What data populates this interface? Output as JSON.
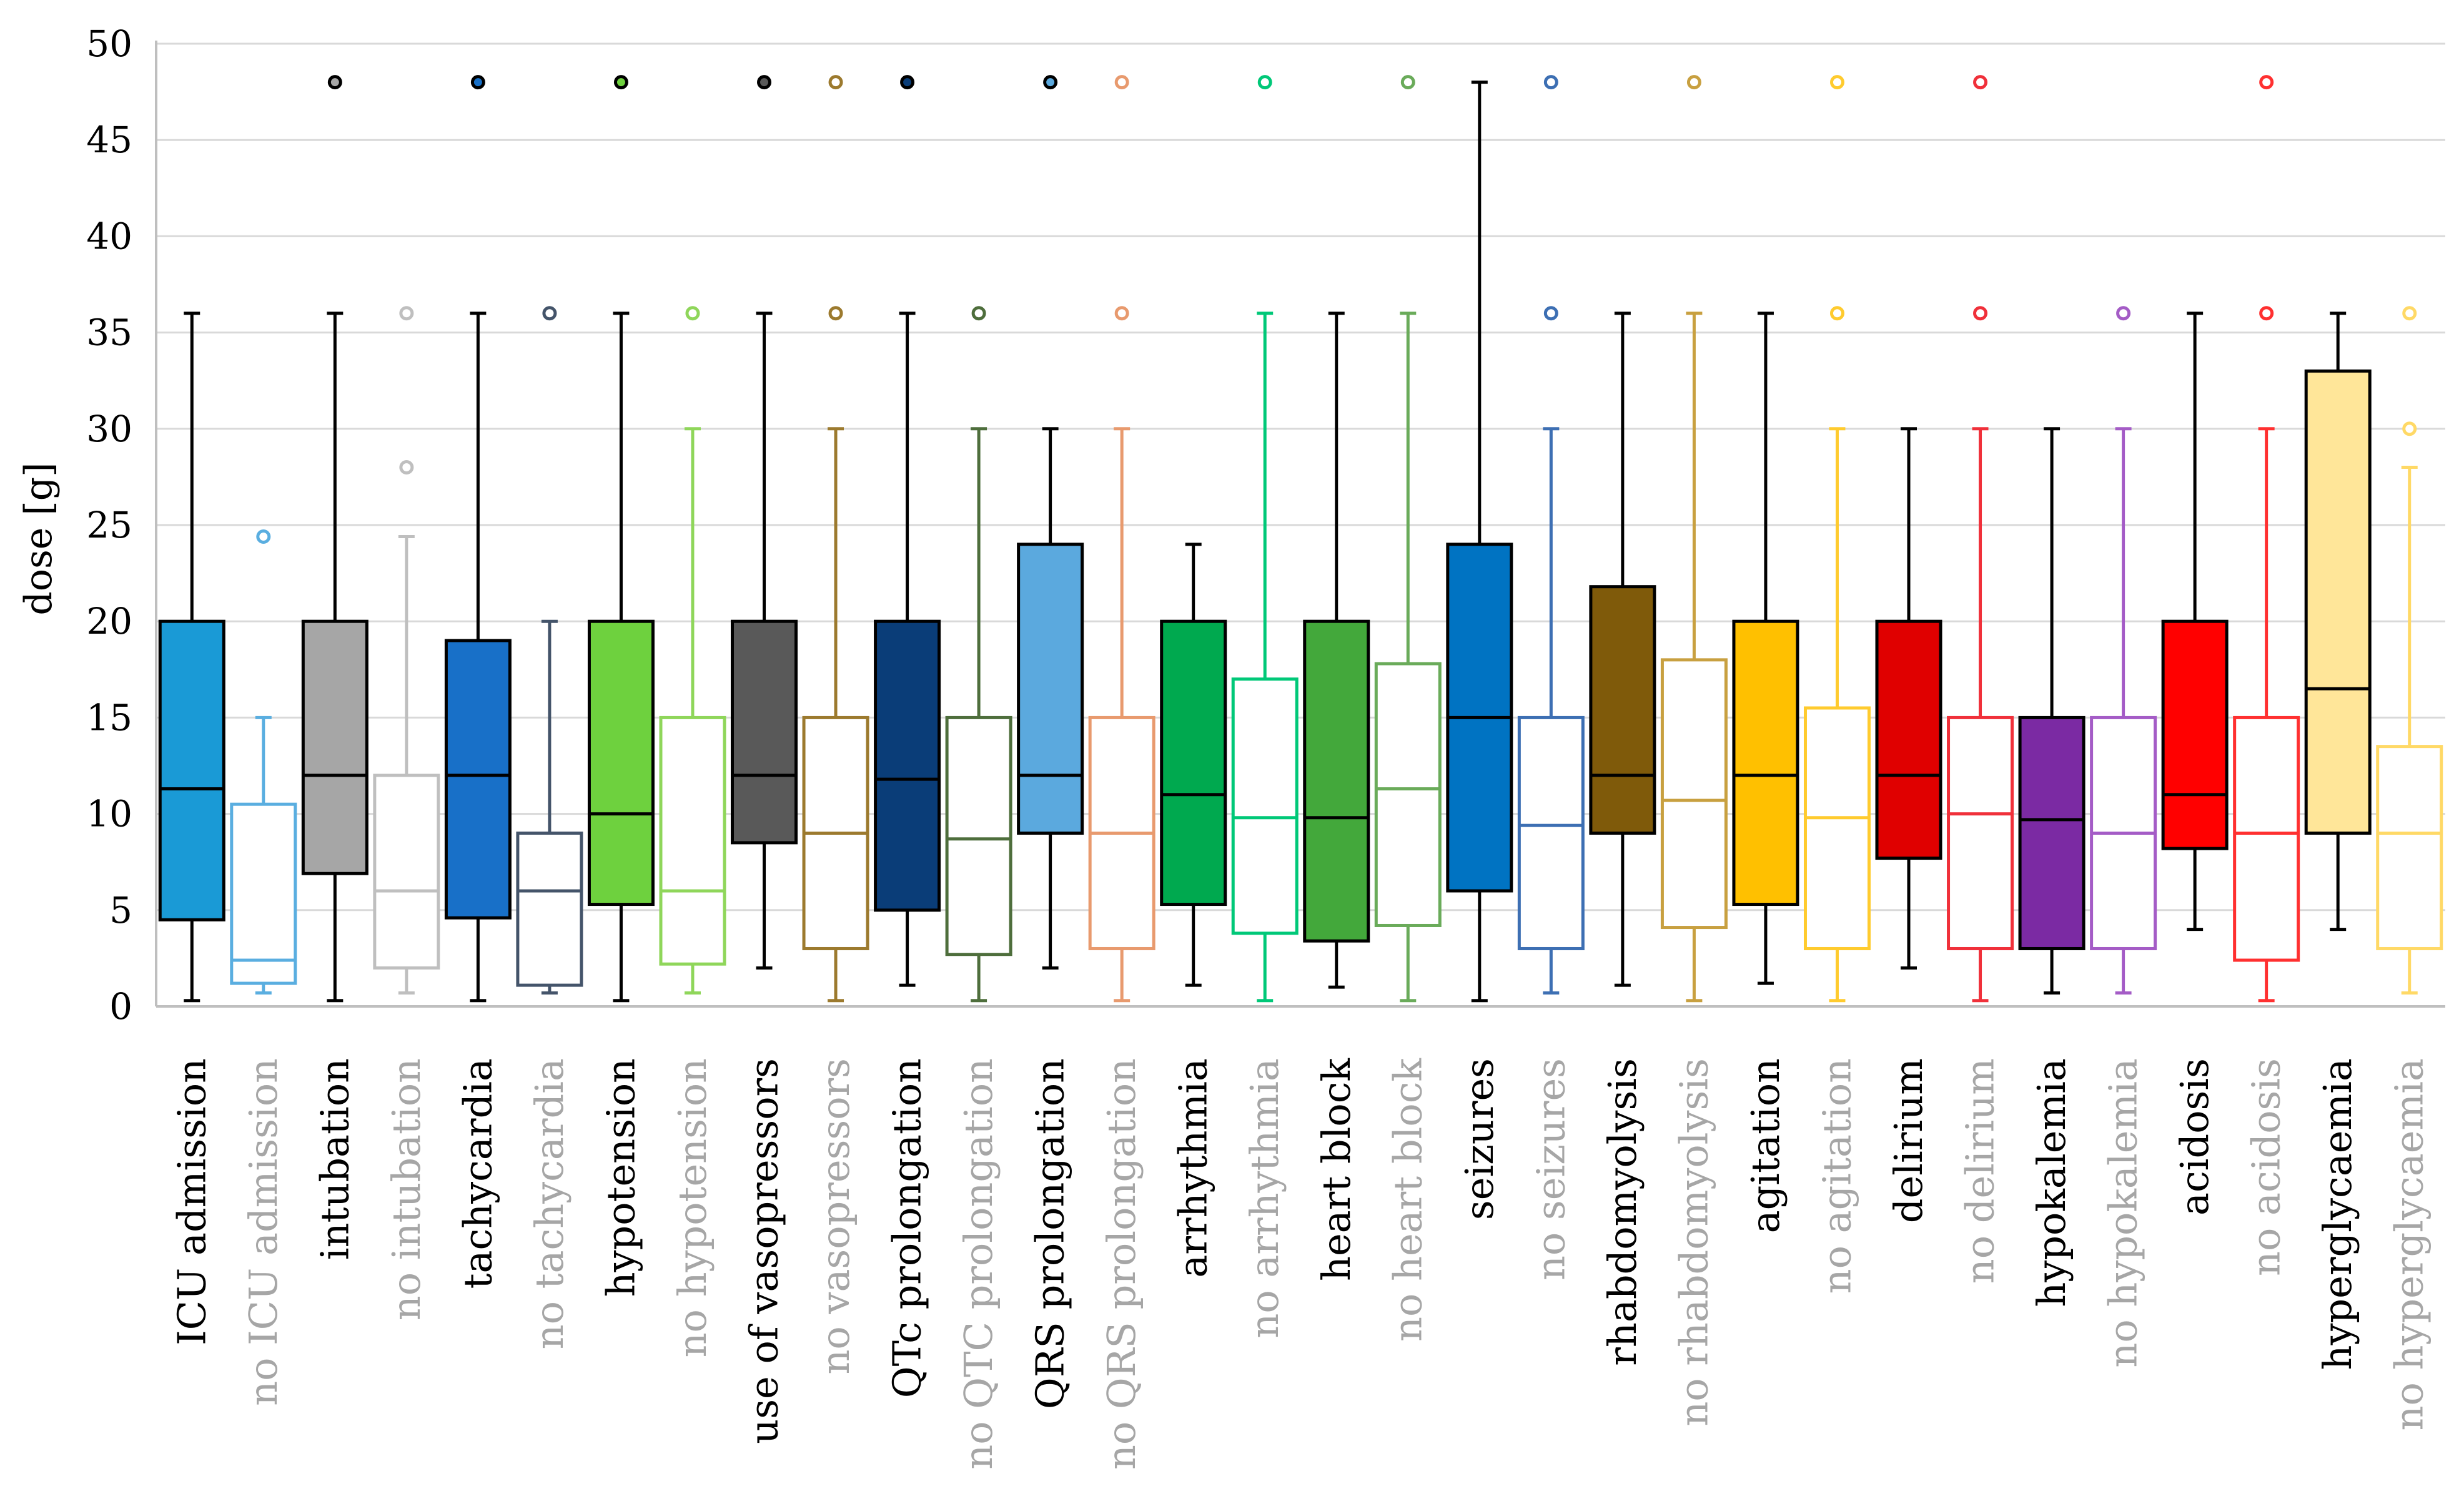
{
  "chart_data": {
    "type": "boxplot",
    "title": "",
    "xlabel": "",
    "ylabel": "dose [g]",
    "ylim": [
      0,
      50
    ],
    "yticks": [
      0,
      5,
      10,
      15,
      20,
      25,
      30,
      35,
      40,
      45,
      50
    ],
    "grid": true,
    "categories": [
      "ICU admission",
      "no ICU admission",
      "intubation",
      "no intubation",
      "tachycardia",
      "no tachycardia",
      "hypotension",
      "no hypotension",
      "use of vasopressors",
      "no vasopressors",
      "QTc prolongation",
      "no QTC prolongation",
      "QRS prolongation",
      "no QRS prolongation",
      "arrhythmia",
      "no arrhythmia",
      "heart block",
      "no heart block",
      "seizures",
      "no seizures",
      "rhabdomyolysis",
      "no rhabdomyolysis",
      "agitation",
      "no agitation",
      "delirium",
      "no delirium",
      "hypokalemia",
      "no hypokalemia",
      "acidosis",
      "no acidosis",
      "hyperglycaemia",
      "no hyperglycaemia"
    ],
    "series": [
      {
        "name": "ICU admission",
        "min": 0.3,
        "q1": 4.5,
        "median": 11.3,
        "q3": 20,
        "max": 36,
        "outliers": [],
        "fill": "#1a9ad6",
        "stroke": "#000000",
        "label_color": "#000000"
      },
      {
        "name": "no ICU admission",
        "min": 0.7,
        "q1": 1.2,
        "median": 2.4,
        "q3": 10.5,
        "max": 15,
        "outliers": [
          24.4
        ],
        "fill": "none",
        "stroke": "#5aaee0",
        "label_color": "#a6a6a6"
      },
      {
        "name": "intubation",
        "min": 0.3,
        "q1": 6.9,
        "median": 12,
        "q3": 20,
        "max": 36,
        "outliers": [
          48
        ],
        "fill": "#a6a6a6",
        "stroke": "#000000",
        "label_color": "#000000"
      },
      {
        "name": "no intubation",
        "min": 0.7,
        "q1": 2,
        "median": 6,
        "q3": 12,
        "max": 24.4,
        "outliers": [
          28,
          36
        ],
        "fill": "none",
        "stroke": "#bfbfbf",
        "label_color": "#a6a6a6"
      },
      {
        "name": "tachycardia",
        "min": 0.3,
        "q1": 4.6,
        "median": 12,
        "q3": 19,
        "max": 36,
        "outliers": [
          48
        ],
        "fill": "#1870c8",
        "stroke": "#000000",
        "label_color": "#000000"
      },
      {
        "name": "no tachycardia",
        "min": 0.7,
        "q1": 1.1,
        "median": 6,
        "q3": 9,
        "max": 20,
        "outliers": [
          36
        ],
        "fill": "none",
        "stroke": "#44546a",
        "label_color": "#a6a6a6"
      },
      {
        "name": "hypotension",
        "min": 0.3,
        "q1": 5.3,
        "median": 10,
        "q3": 20,
        "max": 36,
        "outliers": [
          48
        ],
        "fill": "#6ed13e",
        "stroke": "#000000",
        "label_color": "#000000"
      },
      {
        "name": "no hypotension",
        "min": 0.7,
        "q1": 2.2,
        "median": 6,
        "q3": 15,
        "max": 30,
        "outliers": [
          36
        ],
        "fill": "none",
        "stroke": "#8fd65a",
        "label_color": "#a6a6a6"
      },
      {
        "name": "use of vasopressors",
        "min": 2,
        "q1": 8.5,
        "median": 12,
        "q3": 20,
        "max": 36,
        "outliers": [
          48
        ],
        "fill": "#595959",
        "stroke": "#000000",
        "label_color": "#000000"
      },
      {
        "name": "no vasopressors",
        "min": 0.3,
        "q1": 3,
        "median": 9,
        "q3": 15,
        "max": 30,
        "outliers": [
          36,
          48
        ],
        "fill": "none",
        "stroke": "#9c7a2e",
        "label_color": "#a6a6a6"
      },
      {
        "name": "QTc prolongation",
        "min": 1.1,
        "q1": 5,
        "median": 11.8,
        "q3": 20,
        "max": 36,
        "outliers": [
          48
        ],
        "fill": "#0a3d78",
        "stroke": "#000000",
        "label_color": "#000000"
      },
      {
        "name": "no QTC prolongation",
        "min": 0.3,
        "q1": 2.7,
        "median": 8.7,
        "q3": 15,
        "max": 30,
        "outliers": [
          36
        ],
        "fill": "none",
        "stroke": "#4e6e3c",
        "label_color": "#a6a6a6"
      },
      {
        "name": "QRS prolongation",
        "min": 2,
        "q1": 9,
        "median": 12,
        "q3": 24,
        "max": 30,
        "outliers": [
          48
        ],
        "fill": "#5ba9de",
        "stroke": "#000000",
        "label_color": "#000000"
      },
      {
        "name": "no QRS prolongation",
        "min": 0.3,
        "q1": 3,
        "median": 9,
        "q3": 15,
        "max": 30,
        "outliers": [
          36,
          48
        ],
        "fill": "none",
        "stroke": "#e89a6e",
        "label_color": "#a6a6a6"
      },
      {
        "name": "arrhythmia",
        "min": 1.1,
        "q1": 5.3,
        "median": 11,
        "q3": 20,
        "max": 24,
        "outliers": [],
        "fill": "#00a94f",
        "stroke": "#000000",
        "label_color": "#000000"
      },
      {
        "name": "no arrhythmia",
        "min": 0.3,
        "q1": 3.8,
        "median": 9.8,
        "q3": 17,
        "max": 36,
        "outliers": [
          48
        ],
        "fill": "none",
        "stroke": "#00c878",
        "label_color": "#a6a6a6"
      },
      {
        "name": "heart block",
        "min": 1,
        "q1": 3.4,
        "median": 9.8,
        "q3": 20,
        "max": 36,
        "outliers": [],
        "fill": "#43a83b",
        "stroke": "#000000",
        "label_color": "#000000"
      },
      {
        "name": "no heart block",
        "min": 0.3,
        "q1": 4.2,
        "median": 11.3,
        "q3": 17.8,
        "max": 36,
        "outliers": [
          48
        ],
        "fill": "none",
        "stroke": "#6aab5a",
        "label_color": "#a6a6a6"
      },
      {
        "name": "seizures",
        "min": 0.3,
        "q1": 6,
        "median": 15,
        "q3": 24,
        "max": 48,
        "outliers": [],
        "fill": "#0073c2",
        "stroke": "#000000",
        "label_color": "#000000"
      },
      {
        "name": "no seizures",
        "min": 0.7,
        "q1": 3,
        "median": 9.4,
        "q3": 15,
        "max": 30,
        "outliers": [
          36,
          48
        ],
        "fill": "none",
        "stroke": "#3d6fb3",
        "label_color": "#a6a6a6"
      },
      {
        "name": "rhabdomyolysis",
        "min": 1.1,
        "q1": 9,
        "median": 12,
        "q3": 21.8,
        "max": 36,
        "outliers": [],
        "fill": "#7f5a0a",
        "stroke": "#000000",
        "label_color": "#000000"
      },
      {
        "name": "no rhabdomyolysis",
        "min": 0.3,
        "q1": 4.1,
        "median": 10.7,
        "q3": 18,
        "max": 36,
        "outliers": [
          48
        ],
        "fill": "none",
        "stroke": "#c8a040",
        "label_color": "#a6a6a6"
      },
      {
        "name": "agitation",
        "min": 1.2,
        "q1": 5.3,
        "median": 12,
        "q3": 20,
        "max": 36,
        "outliers": [],
        "fill": "#ffc000",
        "stroke": "#000000",
        "label_color": "#000000"
      },
      {
        "name": "no agitation",
        "min": 0.3,
        "q1": 3,
        "median": 9.8,
        "q3": 15.5,
        "max": 30,
        "outliers": [
          36,
          48
        ],
        "fill": "none",
        "stroke": "#ffcb2e",
        "label_color": "#a6a6a6"
      },
      {
        "name": "delirium",
        "min": 2,
        "q1": 7.7,
        "median": 12,
        "q3": 20,
        "max": 30,
        "outliers": [],
        "fill": "#e00000",
        "stroke": "#000000",
        "label_color": "#000000"
      },
      {
        "name": "no delirium",
        "min": 0.3,
        "q1": 3,
        "median": 10,
        "q3": 15,
        "max": 30,
        "outliers": [
          36,
          48
        ],
        "fill": "none",
        "stroke": "#f0303a",
        "label_color": "#a6a6a6"
      },
      {
        "name": "hypokalemia",
        "min": 0.7,
        "q1": 3,
        "median": 9.7,
        "q3": 15,
        "max": 30,
        "outliers": [],
        "fill": "#7b2aa3",
        "stroke": "#000000",
        "label_color": "#000000"
      },
      {
        "name": "no hypokalemia",
        "min": 0.7,
        "q1": 3,
        "median": 9,
        "q3": 15,
        "max": 30,
        "outliers": [
          36
        ],
        "fill": "none",
        "stroke": "#a45cc6",
        "label_color": "#a6a6a6"
      },
      {
        "name": "acidosis",
        "min": 4,
        "q1": 8.2,
        "median": 11,
        "q3": 20,
        "max": 36,
        "outliers": [],
        "fill": "#ff0000",
        "stroke": "#000000",
        "label_color": "#000000"
      },
      {
        "name": "no acidosis",
        "min": 0.3,
        "q1": 2.4,
        "median": 9,
        "q3": 15,
        "max": 30,
        "outliers": [
          36,
          48
        ],
        "fill": "none",
        "stroke": "#ff3030",
        "label_color": "#a6a6a6"
      },
      {
        "name": "hyperglycaemia",
        "min": 4,
        "q1": 9,
        "median": 16.5,
        "q3": 33,
        "max": 36,
        "outliers": [],
        "fill": "#ffe699",
        "stroke": "#000000",
        "label_color": "#000000"
      },
      {
        "name": "no hyperglycaemia",
        "min": 0.7,
        "q1": 3,
        "median": 9,
        "q3": 13.5,
        "max": 28,
        "outliers": [
          30,
          36
        ],
        "fill": "none",
        "stroke": "#ffd966",
        "label_color": "#a6a6a6"
      }
    ]
  }
}
